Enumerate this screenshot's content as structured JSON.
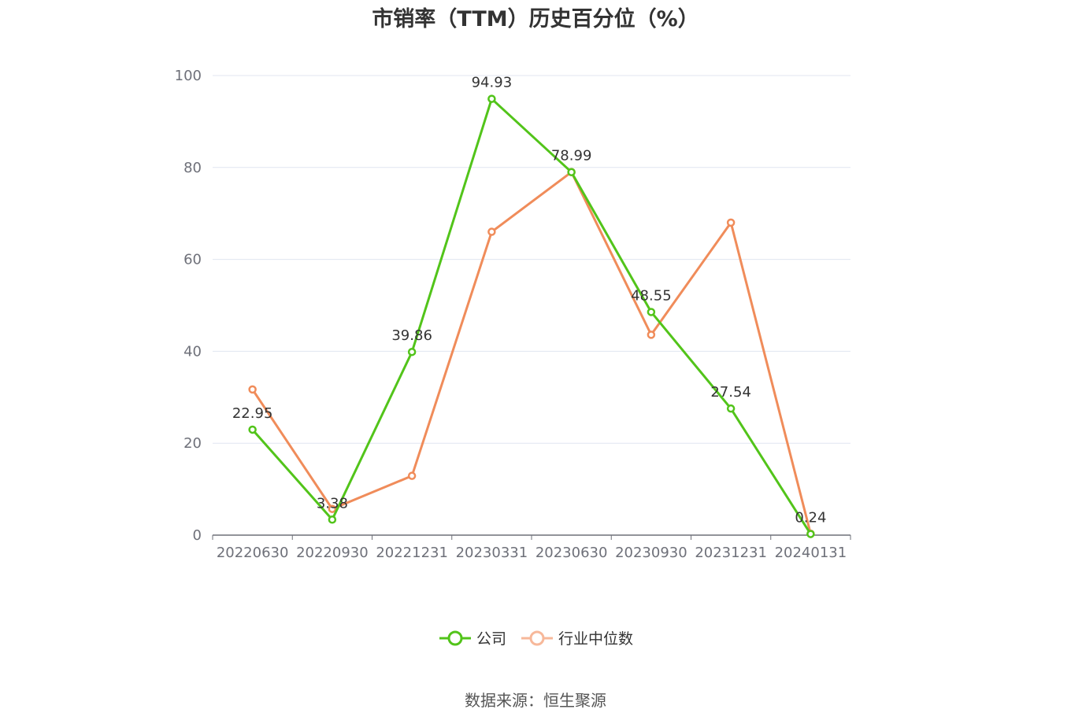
{
  "chart_data": {
    "type": "line",
    "title": "市销率（TTM）历史百分位（%）",
    "x": [
      "20220630",
      "20220930",
      "20221231",
      "20230331",
      "20230630",
      "20230930",
      "20231231",
      "20240131"
    ],
    "ylim": [
      0,
      100
    ],
    "yticks": [
      0,
      20,
      40,
      60,
      80,
      100
    ],
    "grid": true,
    "legend_position": "bottom-center",
    "series": [
      {
        "name": "公司",
        "color": "#52c41a",
        "values": [
          22.95,
          3.38,
          39.86,
          94.93,
          78.99,
          48.55,
          27.54,
          0.24
        ],
        "labels": [
          "22.95",
          "3.38",
          "39.86",
          "94.93",
          "78.99",
          "48.55",
          "27.54",
          "0.24"
        ]
      },
      {
        "name": "行业中位数",
        "color": "#f08c5a",
        "values": [
          31.7,
          5.7,
          12.9,
          66.0,
          79.0,
          43.6,
          68.0,
          0.3
        ]
      }
    ]
  },
  "source": "数据来源：恒生聚源"
}
